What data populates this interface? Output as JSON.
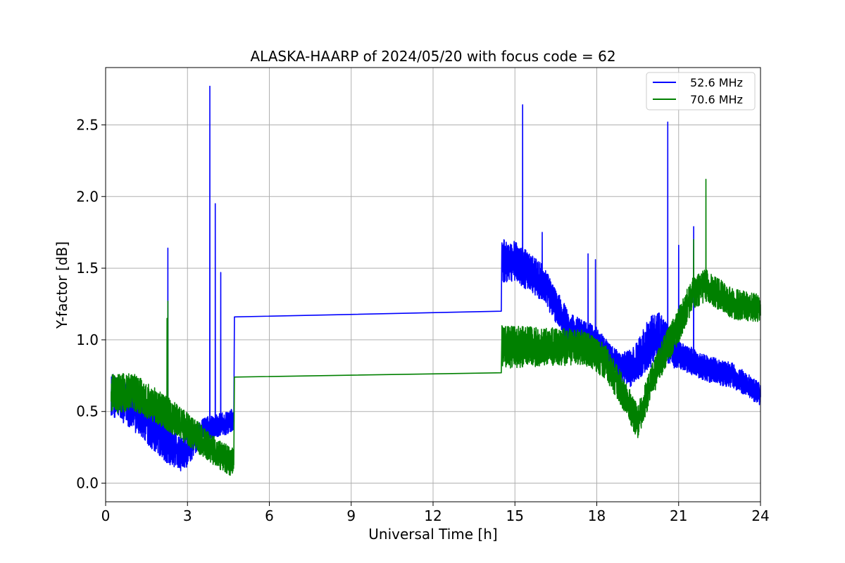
{
  "chart_data": {
    "type": "line",
    "title": "ALASKA-HAARP of 2024/05/20 with focus code = 62",
    "xlabel": "Universal Time [h]",
    "ylabel": "Y-factor [dB]",
    "xlim": [
      0,
      24
    ],
    "ylim": [
      -0.13,
      2.9
    ],
    "x_ticks": [
      0,
      3,
      6,
      9,
      12,
      15,
      18,
      21,
      24
    ],
    "y_ticks": [
      0.0,
      0.5,
      1.0,
      1.5,
      2.0,
      2.5
    ],
    "grid": true,
    "legend_position": "top-right",
    "series": [
      {
        "name": "52.6 MHz",
        "color": "#0000ff",
        "trend": [
          [
            0.2,
            0.62
          ],
          [
            0.8,
            0.55
          ],
          [
            1.5,
            0.42
          ],
          [
            2.2,
            0.28
          ],
          [
            2.8,
            0.2
          ],
          [
            3.2,
            0.28
          ],
          [
            3.6,
            0.38
          ],
          [
            4.0,
            0.4
          ],
          [
            4.5,
            0.42
          ],
          [
            4.7,
            0.45
          ]
        ],
        "noise_amp": [
          [
            0.2,
            0.15
          ],
          [
            2.0,
            0.14
          ],
          [
            3.0,
            0.12
          ],
          [
            3.5,
            0.08
          ],
          [
            4.7,
            0.08
          ]
        ],
        "bridge": [
          [
            4.72,
            1.16
          ],
          [
            14.5,
            1.2
          ]
        ],
        "trend2": [
          [
            14.52,
            1.55
          ],
          [
            15.0,
            1.55
          ],
          [
            16.0,
            1.4
          ],
          [
            17.0,
            1.08
          ],
          [
            18.0,
            1.0
          ],
          [
            18.8,
            0.82
          ],
          [
            19.3,
            0.8
          ],
          [
            19.8,
            0.95
          ],
          [
            20.3,
            1.05
          ],
          [
            20.8,
            0.92
          ],
          [
            21.5,
            0.85
          ],
          [
            22.0,
            0.8
          ],
          [
            23.0,
            0.75
          ],
          [
            24.0,
            0.62
          ]
        ],
        "noise_amp2": [
          [
            14.5,
            0.15
          ],
          [
            16.5,
            0.12
          ],
          [
            18.5,
            0.08
          ],
          [
            20.0,
            0.18
          ],
          [
            21.0,
            0.1
          ],
          [
            24.0,
            0.08
          ]
        ],
        "spikes": [
          [
            2.28,
            1.64
          ],
          [
            3.82,
            2.77
          ],
          [
            4.02,
            1.95
          ],
          [
            4.22,
            1.47
          ],
          [
            15.28,
            2.64
          ],
          [
            17.68,
            1.6
          ],
          [
            17.95,
            1.56
          ],
          [
            20.6,
            2.52
          ],
          [
            21.0,
            1.66
          ],
          [
            21.55,
            1.79
          ],
          [
            16.0,
            1.75
          ]
        ]
      },
      {
        "name": "70.6 MHz",
        "color": "#008000",
        "trend": [
          [
            0.2,
            0.62
          ],
          [
            1.0,
            0.64
          ],
          [
            2.0,
            0.52
          ],
          [
            3.0,
            0.38
          ],
          [
            4.0,
            0.22
          ],
          [
            4.7,
            0.14
          ]
        ],
        "noise_amp": [
          [
            0.2,
            0.14
          ],
          [
            2.0,
            0.12
          ],
          [
            4.7,
            0.1
          ]
        ],
        "bridge": [
          [
            4.72,
            0.74
          ],
          [
            14.5,
            0.77
          ]
        ],
        "trend2": [
          [
            14.52,
            0.95
          ],
          [
            16.0,
            0.95
          ],
          [
            17.5,
            0.95
          ],
          [
            18.3,
            0.85
          ],
          [
            19.0,
            0.62
          ],
          [
            19.5,
            0.42
          ],
          [
            20.0,
            0.7
          ],
          [
            20.5,
            0.92
          ],
          [
            21.0,
            1.1
          ],
          [
            21.5,
            1.32
          ],
          [
            22.0,
            1.38
          ],
          [
            23.0,
            1.25
          ],
          [
            24.0,
            1.22
          ]
        ],
        "noise_amp2": [
          [
            14.5,
            0.15
          ],
          [
            18.0,
            0.12
          ],
          [
            19.5,
            0.12
          ],
          [
            21.0,
            0.12
          ],
          [
            24.0,
            0.1
          ]
        ],
        "spikes": [
          [
            2.28,
            1.27
          ],
          [
            2.25,
            1.15
          ],
          [
            22.0,
            2.12
          ],
          [
            21.55,
            1.7
          ]
        ]
      }
    ]
  }
}
